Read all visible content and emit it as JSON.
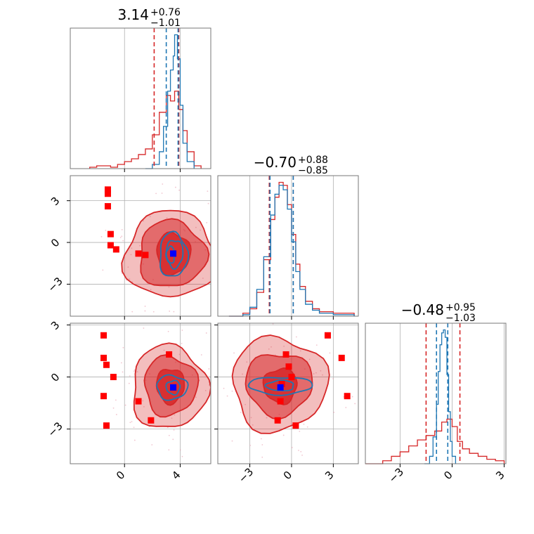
{
  "chart_data": {
    "type": "corner",
    "grid": true,
    "colors": {
      "red": "#d62728",
      "blue": "#1f77b4",
      "marker_red": "#ff0000",
      "marker_blue": "#0000ff",
      "grid": "#b0b0b0"
    },
    "parameters": [
      {
        "index": 0,
        "range": [
          -3.9,
          6.2
        ],
        "ticks": [
          0,
          4
        ],
        "tick_labels": [
          "0",
          "4"
        ],
        "title": {
          "main": "3.14",
          "sup": "+0.76",
          "sub": "−1.01"
        }
      },
      {
        "index": 1,
        "range": [
          -5.3,
          4.8
        ],
        "ticks": [
          -3,
          0,
          3
        ],
        "tick_labels": [
          "−3",
          "0",
          "3"
        ],
        "title": {
          "main": "−0.70",
          "sup": "+0.88",
          "sub": "−0.85"
        }
      },
      {
        "index": 2,
        "range": [
          -5.0,
          3.1
        ],
        "ticks": [
          -3,
          0,
          3
        ],
        "tick_labels": [
          "−3",
          "0",
          "3"
        ],
        "title": {
          "main": "−0.48",
          "sup": "+0.95",
          "sub": "−1.03"
        }
      }
    ],
    "diagonal": [
      {
        "param": 0,
        "series": [
          {
            "color": "red",
            "x": [
              -2.5,
              -2,
              -1.5,
              -1,
              -0.5,
              0,
              0.5,
              1,
              1.5,
              2,
              2.5,
              3,
              3.3,
              3.6,
              3.9,
              4.2,
              4.5,
              5,
              5.5
            ],
            "y": [
              0.01,
              0.02,
              0.02,
              0.01,
              0.03,
              0.05,
              0.07,
              0.1,
              0.14,
              0.24,
              0.4,
              0.52,
              0.48,
              0.55,
              0.42,
              0.27,
              0.12,
              0.02,
              0.0
            ]
          },
          {
            "color": "blue",
            "x": [
              1.5,
              2,
              2.5,
              2.8,
              3.1,
              3.3,
              3.5,
              3.6,
              3.8,
              4,
              4.2,
              4.5,
              5
            ],
            "y": [
              0.0,
              0.03,
              0.12,
              0.3,
              0.55,
              0.7,
              0.8,
              0.95,
              0.78,
              0.45,
              0.18,
              0.05,
              0.0
            ]
          }
        ],
        "vlines": [
          {
            "color": "red",
            "values": [
              2.13,
              3.9
            ]
          },
          {
            "color": "blue",
            "values": [
              3.0,
              3.85
            ]
          }
        ]
      },
      {
        "param": 1,
        "series": [
          {
            "color": "red",
            "x": [
              -4.5,
              -3.5,
              -3,
              -2.5,
              -2,
              -1.5,
              -1.2,
              -0.9,
              -0.6,
              -0.3,
              0,
              0.3,
              0.6,
              1,
              1.5,
              2,
              3,
              4.5
            ],
            "y": [
              0.0,
              0.02,
              0.05,
              0.16,
              0.38,
              0.65,
              0.8,
              0.9,
              0.88,
              0.75,
              0.55,
              0.35,
              0.2,
              0.1,
              0.05,
              0.03,
              0.02,
              0.0
            ]
          },
          {
            "color": "blue",
            "x": [
              -4.5,
              -3.5,
              -3,
              -2.5,
              -2,
              -1.5,
              -1.2,
              -0.9,
              -0.6,
              -0.3,
              0,
              0.3,
              0.6,
              1,
              1.5,
              2,
              3,
              4.5
            ],
            "y": [
              0.0,
              0.01,
              0.06,
              0.18,
              0.4,
              0.68,
              0.82,
              0.88,
              0.85,
              0.72,
              0.5,
              0.3,
              0.18,
              0.08,
              0.04,
              0.02,
              0.01,
              0.0
            ]
          }
        ],
        "vlines": [
          {
            "color": "red",
            "values": [
              -1.6,
              0.12
            ]
          },
          {
            "color": "blue",
            "values": [
              -1.55,
              0.12
            ]
          }
        ]
      },
      {
        "param": 2,
        "series": [
          {
            "color": "red",
            "x": [
              -5,
              -4,
              -3.5,
              -3,
              -2.5,
              -2,
              -1.5,
              -1,
              -0.6,
              -0.3,
              0,
              0.3,
              0.6,
              1,
              1.5,
              2,
              2.5,
              3
            ],
            "y": [
              0.0,
              0.02,
              0.05,
              0.08,
              0.12,
              0.16,
              0.19,
              0.22,
              0.28,
              0.3,
              0.25,
              0.15,
              0.1,
              0.07,
              0.05,
              0.03,
              0.02,
              0.01
            ]
          },
          {
            "color": "blue",
            "x": [
              -1.6,
              -1.3,
              -1.1,
              -0.9,
              -0.8,
              -0.7,
              -0.6,
              -0.5,
              -0.4,
              -0.3,
              -0.2,
              -0.1,
              0,
              0.2
            ],
            "y": [
              0.0,
              0.05,
              0.18,
              0.4,
              0.62,
              0.8,
              0.88,
              0.9,
              0.85,
              0.6,
              0.35,
              0.15,
              0.05,
              0.0
            ]
          }
        ],
        "vlines": [
          {
            "color": "red",
            "values": [
              -1.5,
              0.45
            ]
          },
          {
            "color": "blue",
            "values": [
              -0.9,
              -0.25
            ]
          }
        ]
      }
    ],
    "scatter_panels": [
      {
        "x_param": 0,
        "y_param": 1,
        "red_filled": [
          {
            "center": [
              3.3,
              -0.9
            ],
            "rx": 3.3,
            "ry": 3.1
          },
          {
            "center": [
              3.4,
              -0.85
            ],
            "rx": 2.4,
            "ry": 2.4
          },
          {
            "center": [
              3.5,
              -0.8
            ],
            "rx": 1.2,
            "ry": 1.5
          }
        ],
        "blue_contours": [
          {
            "center": [
              3.5,
              -0.9
            ],
            "rx": 1.0,
            "ry": 1.6
          },
          {
            "center": [
              3.6,
              -0.8
            ],
            "rx": 0.6,
            "ry": 1.0
          },
          {
            "center": [
              3.3,
              -0.9
            ],
            "rx": 0.3,
            "ry": 0.6
          }
        ],
        "red_markers": [
          [
            -1.2,
            3.8
          ],
          [
            -1.2,
            3.5
          ],
          [
            -1.2,
            2.6
          ],
          [
            -1.0,
            0.6
          ],
          [
            -1.0,
            -0.2
          ],
          [
            -0.6,
            -0.5
          ],
          [
            1.0,
            -0.8
          ],
          [
            1.5,
            -0.9
          ],
          [
            3.5,
            -0.8
          ]
        ],
        "blue_marker": [
          3.5,
          -0.8
        ]
      },
      {
        "x_param": 0,
        "y_param": 2,
        "red_filled": [
          {
            "center": [
              3.2,
              -0.6
            ],
            "rx": 2.7,
            "ry": 2.4
          },
          {
            "center": [
              3.3,
              -0.5
            ],
            "rx": 1.9,
            "ry": 1.7
          },
          {
            "center": [
              3.3,
              -0.5
            ],
            "rx": 1.0,
            "ry": 1.0
          }
        ],
        "blue_contours": [
          {
            "center": [
              3.4,
              -0.6
            ],
            "rx": 1.1,
            "ry": 0.7
          },
          {
            "center": [
              3.5,
              -0.6
            ],
            "rx": 0.5,
            "ry": 0.4
          }
        ],
        "red_markers": [
          [
            -1.5,
            2.4
          ],
          [
            -1.5,
            1.1
          ],
          [
            -1.3,
            0.7
          ],
          [
            -0.8,
            0.0
          ],
          [
            -1.5,
            -1.1
          ],
          [
            -1.3,
            -2.8
          ],
          [
            1.0,
            -1.4
          ],
          [
            1.9,
            -2.5
          ],
          [
            3.2,
            1.3
          ],
          [
            3.5,
            -0.6
          ]
        ],
        "blue_marker": [
          3.5,
          -0.6
        ]
      },
      {
        "x_param": 1,
        "y_param": 2,
        "red_filled": [
          {
            "center": [
              -0.9,
              -0.4
            ],
            "rx": 3.4,
            "ry": 2.7
          },
          {
            "center": [
              -0.9,
              -0.4
            ],
            "rx": 2.4,
            "ry": 1.8
          },
          {
            "center": [
              -0.8,
              -0.5
            ],
            "rx": 1.2,
            "ry": 1.0
          }
        ],
        "blue_contours": [
          {
            "center": [
              -0.8,
              -0.5
            ],
            "rx": 2.3,
            "ry": 0.5
          },
          {
            "center": [
              -0.8,
              -0.5
            ],
            "rx": 1.0,
            "ry": 0.3
          }
        ],
        "red_markers": [
          [
            -0.4,
            1.3
          ],
          [
            -0.2,
            0.6
          ],
          [
            0.0,
            0.0
          ],
          [
            -0.7,
            -0.4
          ],
          [
            -0.8,
            -1.4
          ],
          [
            -1.0,
            -2.5
          ],
          [
            0.3,
            -2.8
          ],
          [
            2.6,
            2.4
          ],
          [
            3.6,
            1.1
          ],
          [
            4.0,
            -1.1
          ]
        ],
        "blue_marker": [
          -0.8,
          -0.6
        ]
      }
    ]
  }
}
